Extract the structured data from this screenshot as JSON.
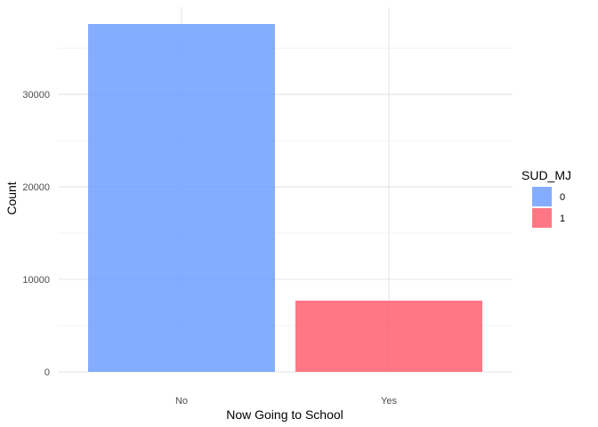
{
  "chart_data": {
    "type": "bar",
    "categories": [
      "No",
      "Yes"
    ],
    "series": [
      {
        "name": "0",
        "values": [
          37600,
          0
        ],
        "color": "#6699FF"
      },
      {
        "name": "1",
        "values": [
          0,
          7700
        ],
        "color": "#FF5566"
      }
    ],
    "xlabel": "Now Going to School",
    "ylabel": "Count",
    "ylim": [
      0,
      37600
    ],
    "yticks": [
      0,
      10000,
      20000,
      30000
    ],
    "ytick_labels": [
      "0",
      "10000",
      "20000",
      "30000"
    ],
    "grid": true,
    "legend": {
      "title": "SUD_MJ",
      "placement": "right",
      "entries": [
        "0",
        "1"
      ]
    }
  }
}
